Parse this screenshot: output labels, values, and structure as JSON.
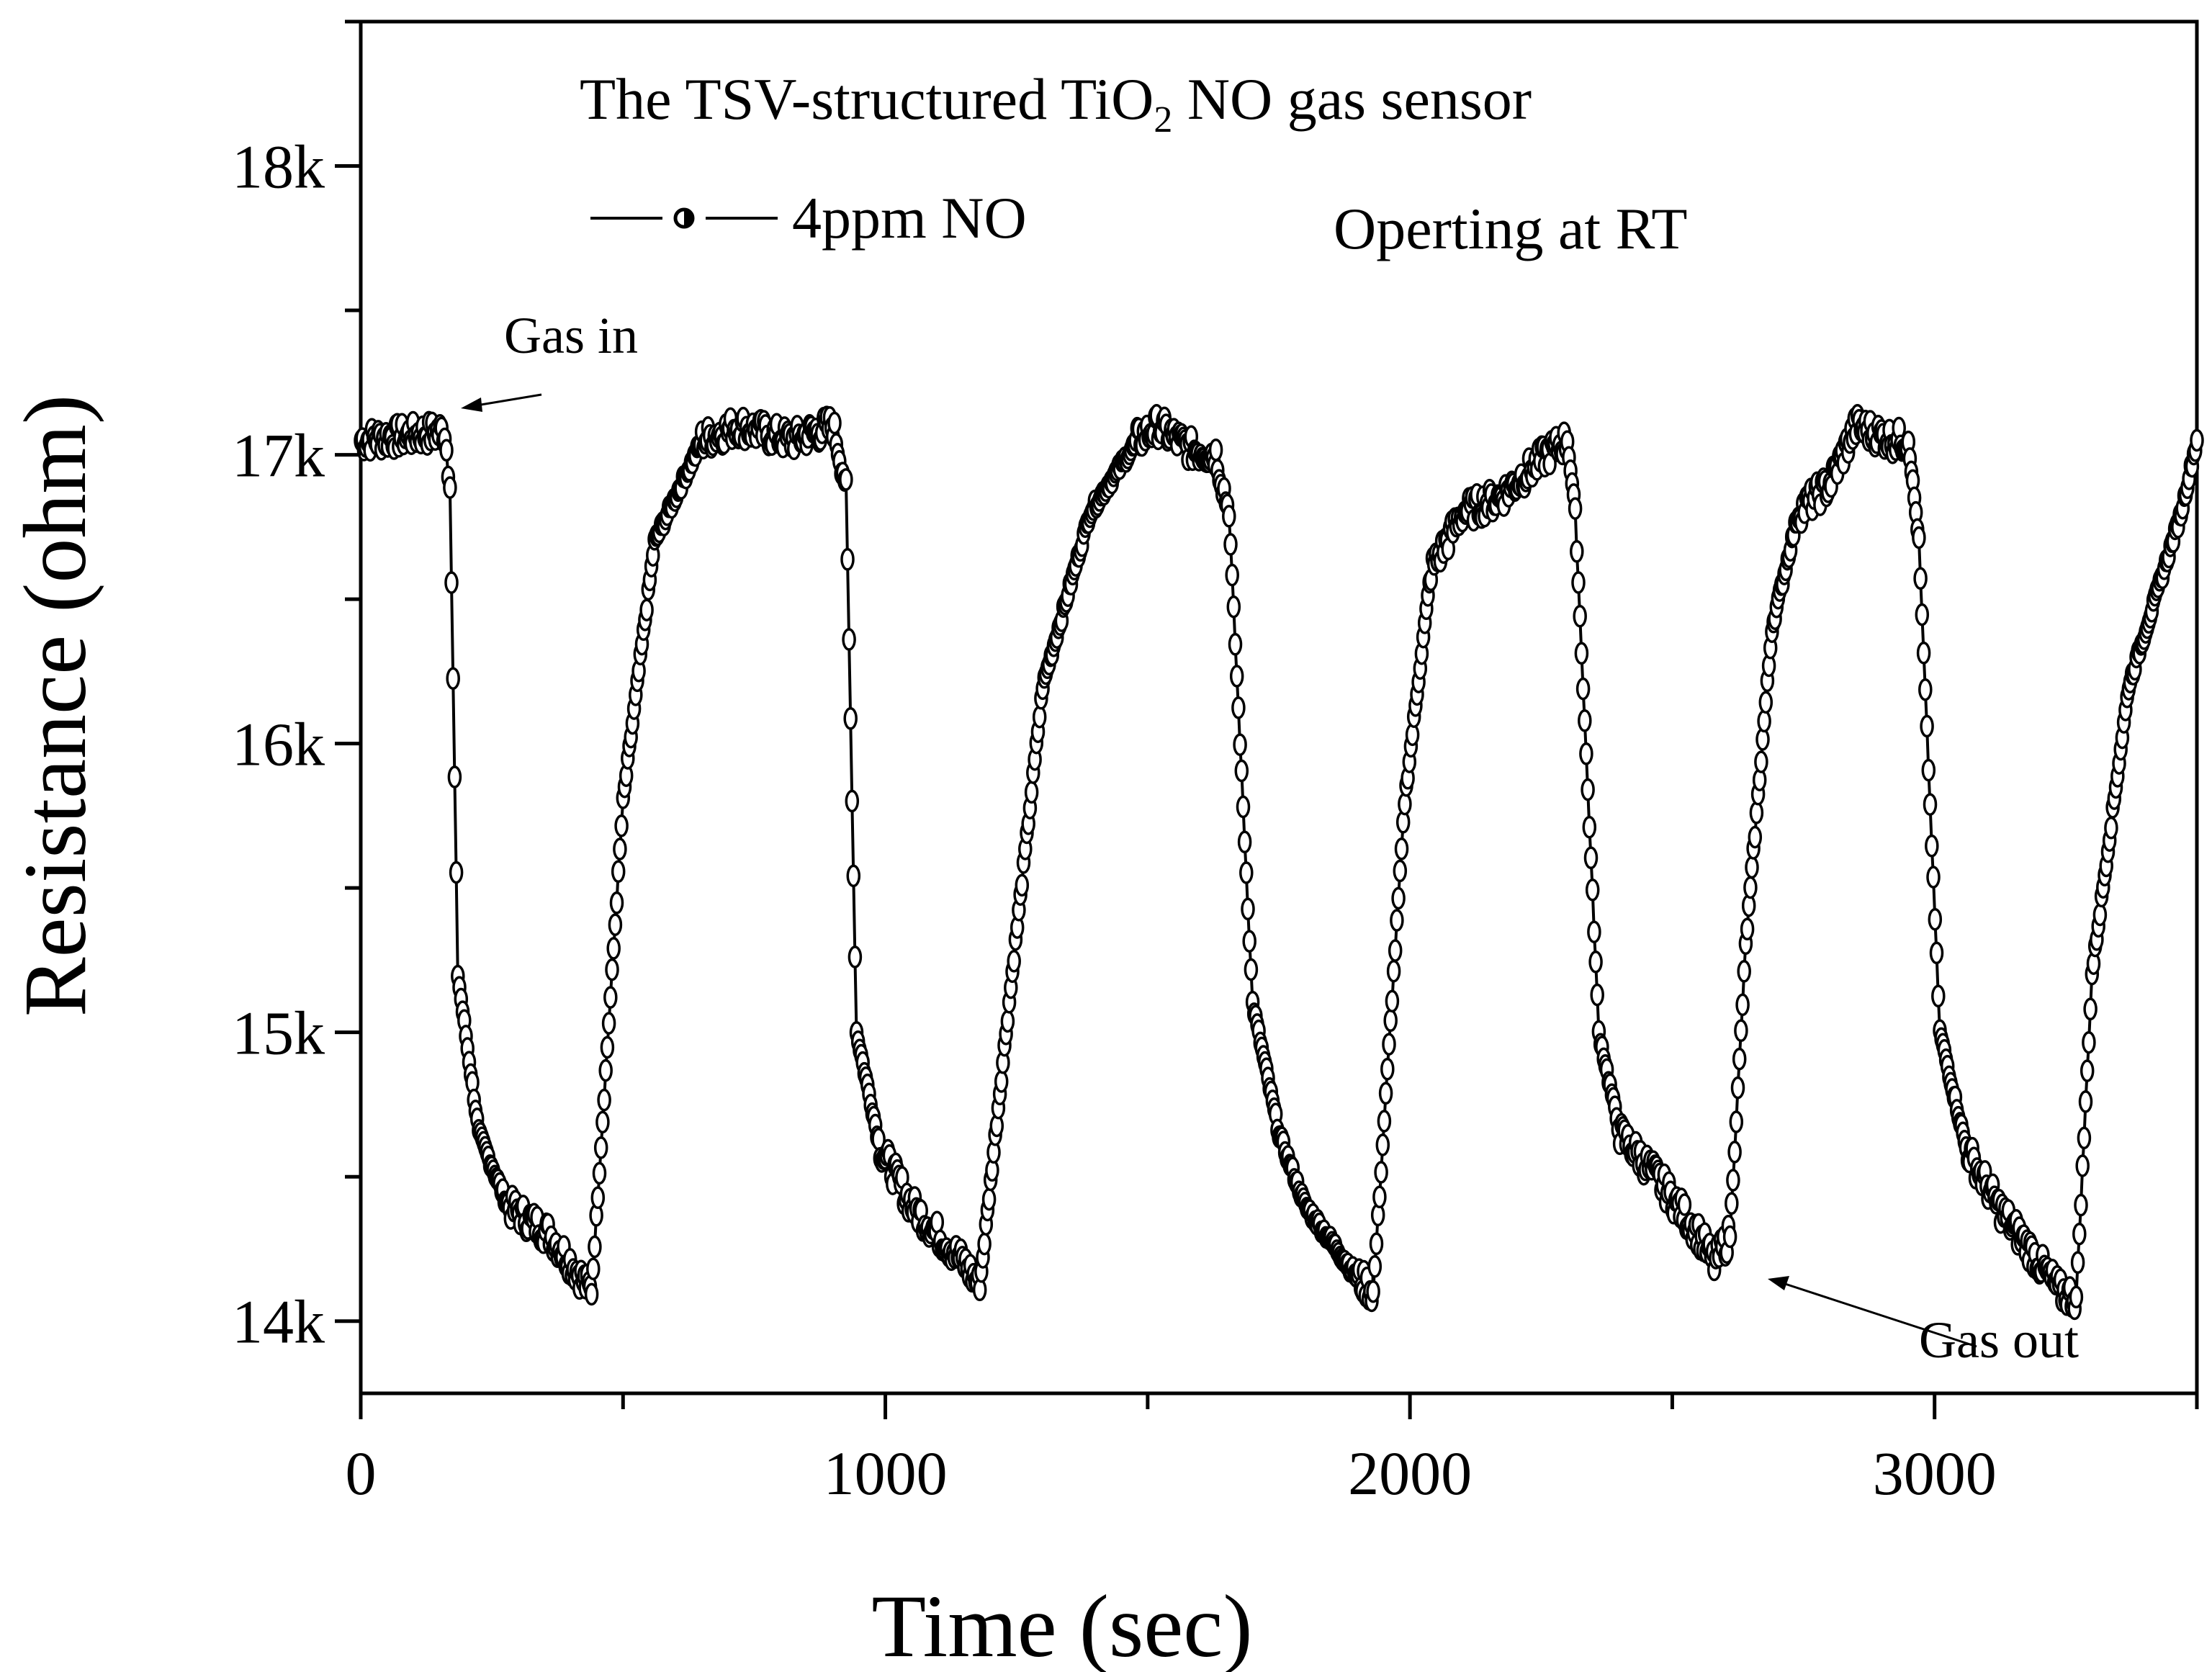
{
  "chart_data": {
    "type": "scatter",
    "title": "The TSV-structured TiO",
    "title_subscript": "2",
    "title_suffix": " NO gas sensor",
    "subtitle": "Operting at RT",
    "xlabel": "Time (sec)",
    "ylabel": "Resistance (ohm)",
    "xlim": [
      0,
      3500
    ],
    "ylim": [
      13750,
      18500
    ],
    "x_ticks": [
      {
        "value": 0,
        "label": "0"
      },
      {
        "value": 1000,
        "label": "1000"
      },
      {
        "value": 2000,
        "label": "2000"
      },
      {
        "value": 3000,
        "label": "3000"
      }
    ],
    "y_ticks": [
      {
        "value": 14000,
        "label": "14k"
      },
      {
        "value": 15000,
        "label": "15k"
      },
      {
        "value": 16000,
        "label": "16k"
      },
      {
        "value": 17000,
        "label": "17k"
      },
      {
        "value": 18000,
        "label": "18k"
      }
    ],
    "legend": {
      "label": "4ppm NO",
      "position": "top-left"
    },
    "annotations": [
      {
        "text": "Gas in",
        "x": 170,
        "y": 17080
      },
      {
        "text": "Gas out",
        "x": 2620,
        "y": 14150
      }
    ],
    "series": [
      {
        "name": "4ppm NO",
        "marker": "open-circle",
        "line": "solid",
        "key_points": [
          [
            0,
            17050
          ],
          [
            160,
            17080
          ],
          [
            170,
            16900
          ],
          [
            185,
            15200
          ],
          [
            225,
            14650
          ],
          [
            280,
            14400
          ],
          [
            360,
            14300
          ],
          [
            420,
            14150
          ],
          [
            440,
            14100
          ],
          [
            500,
            15800
          ],
          [
            560,
            16700
          ],
          [
            650,
            17050
          ],
          [
            720,
            17100
          ],
          [
            820,
            17050
          ],
          [
            900,
            17100
          ],
          [
            925,
            16900
          ],
          [
            945,
            15000
          ],
          [
            990,
            14600
          ],
          [
            1050,
            14400
          ],
          [
            1150,
            14200
          ],
          [
            1180,
            14120
          ],
          [
            1230,
            15000
          ],
          [
            1300,
            16200
          ],
          [
            1390,
            16800
          ],
          [
            1480,
            17050
          ],
          [
            1520,
            17100
          ],
          [
            1580,
            17020
          ],
          [
            1630,
            17000
          ],
          [
            1655,
            16800
          ],
          [
            1700,
            15100
          ],
          [
            1750,
            14650
          ],
          [
            1800,
            14400
          ],
          [
            1900,
            14150
          ],
          [
            1930,
            14100
          ],
          [
            1990,
            15800
          ],
          [
            2040,
            16600
          ],
          [
            2100,
            16800
          ],
          [
            2170,
            16850
          ],
          [
            2260,
            17000
          ],
          [
            2300,
            17050
          ],
          [
            2315,
            16800
          ],
          [
            2360,
            15000
          ],
          [
            2400,
            14650
          ],
          [
            2470,
            14500
          ],
          [
            2550,
            14300
          ],
          [
            2580,
            14200
          ],
          [
            2610,
            14300
          ],
          [
            2640,
            15300
          ],
          [
            2690,
            16400
          ],
          [
            2740,
            16800
          ],
          [
            2800,
            16900
          ],
          [
            2850,
            17100
          ],
          [
            2920,
            17050
          ],
          [
            2950,
            17050
          ],
          [
            2970,
            16700
          ],
          [
            3010,
            15000
          ],
          [
            3060,
            14600
          ],
          [
            3120,
            14400
          ],
          [
            3200,
            14200
          ],
          [
            3240,
            14100
          ],
          [
            3270,
            14080
          ],
          [
            3300,
            15200
          ],
          [
            3370,
            16200
          ],
          [
            3420,
            16500
          ],
          [
            3470,
            16800
          ],
          [
            3500,
            17050
          ]
        ]
      }
    ]
  }
}
